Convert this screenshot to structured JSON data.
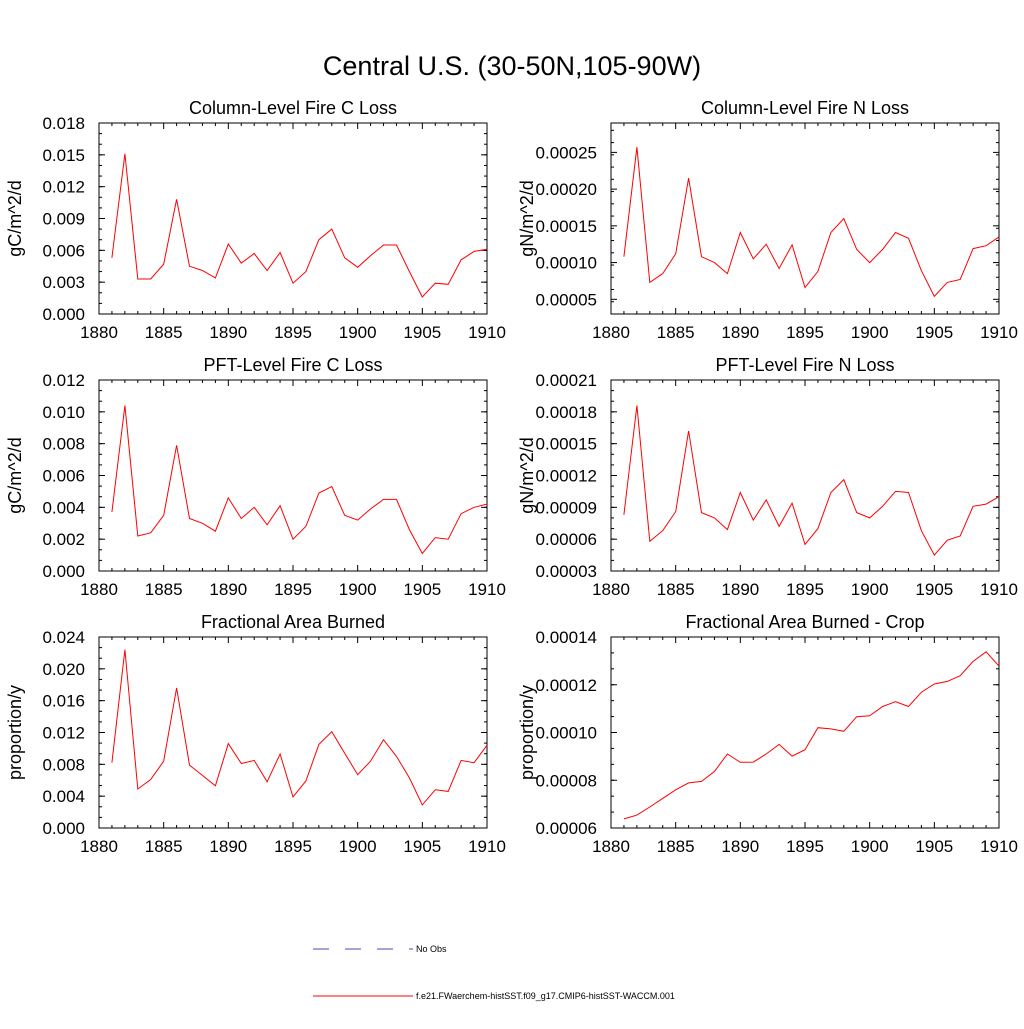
{
  "figure": {
    "title": "Central U.S. (30-50N,105-90W)",
    "line_color": "#ff0000",
    "obs_color": "#4a4aa8"
  },
  "legend": {
    "obs_label": "No Obs",
    "model_label": "f.e21.FWaerchem-histSST.f09_g17.CMIP6-histSST-WACCM.001"
  },
  "chart_data": [
    {
      "type": "line",
      "title": "Column-Level Fire C Loss",
      "ylabel": "gC/m^2/d",
      "xlim": [
        1880,
        1910
      ],
      "ylim": [
        0.0,
        0.018
      ],
      "xticks": [
        1880,
        1885,
        1890,
        1895,
        1900,
        1905,
        1910
      ],
      "yticks": [
        "0.000",
        "0.003",
        "0.006",
        "0.009",
        "0.012",
        "0.015",
        "0.018"
      ],
      "x": [
        1881,
        1882,
        1883,
        1884,
        1885,
        1886,
        1887,
        1888,
        1889,
        1890,
        1891,
        1892,
        1893,
        1894,
        1895,
        1896,
        1897,
        1898,
        1899,
        1900,
        1901,
        1902,
        1903,
        1904,
        1905,
        1906,
        1907,
        1908,
        1909,
        1910
      ],
      "series": [
        {
          "values": [
            0.0053,
            0.0151,
            0.0033,
            0.0033,
            0.0047,
            0.0108,
            0.0045,
            0.0041,
            0.0034,
            0.0066,
            0.0048,
            0.0057,
            0.0041,
            0.0058,
            0.0029,
            0.004,
            0.007,
            0.008,
            0.0053,
            0.0044,
            0.0055,
            0.0065,
            0.0065,
            0.004,
            0.0016,
            0.0029,
            0.0028,
            0.0051,
            0.0059,
            0.0061
          ]
        }
      ]
    },
    {
      "type": "line",
      "title": "Column-Level Fire N Loss",
      "ylabel": "gN/m^2/d",
      "xlim": [
        1880,
        1910
      ],
      "ylim": [
        3e-05,
        0.00029
      ],
      "xticks": [
        1880,
        1885,
        1890,
        1895,
        1900,
        1905,
        1910
      ],
      "yticks": [
        "0.00005",
        "0.00010",
        "0.00015",
        "0.00020",
        "0.00025"
      ],
      "x": [
        1881,
        1882,
        1883,
        1884,
        1885,
        1886,
        1887,
        1888,
        1889,
        1890,
        1891,
        1892,
        1893,
        1894,
        1895,
        1896,
        1897,
        1898,
        1899,
        1900,
        1901,
        1902,
        1903,
        1904,
        1905,
        1906,
        1907,
        1908,
        1909,
        1910
      ],
      "series": [
        {
          "values": [
            0.000108,
            0.000257,
            7.3e-05,
            8.5e-05,
            0.000112,
            0.000215,
            0.000108,
            0.0001,
            8.5e-05,
            0.000141,
            0.000105,
            0.000125,
            9.2e-05,
            0.000124,
            6.6e-05,
            8.8e-05,
            0.000141,
            0.00016,
            0.000118,
            0.0001,
            0.000118,
            0.000141,
            0.000133,
            8.9e-05,
            5.4e-05,
            7.3e-05,
            7.7e-05,
            0.000119,
            0.000123,
            0.000135
          ]
        }
      ]
    },
    {
      "type": "line",
      "title": "PFT-Level Fire C Loss",
      "ylabel": "gC/m^2/d",
      "xlim": [
        1880,
        1910
      ],
      "ylim": [
        0.0,
        0.012
      ],
      "xticks": [
        1880,
        1885,
        1890,
        1895,
        1900,
        1905,
        1910
      ],
      "yticks": [
        "0.000",
        "0.002",
        "0.004",
        "0.006",
        "0.008",
        "0.010",
        "0.012"
      ],
      "x": [
        1881,
        1882,
        1883,
        1884,
        1885,
        1886,
        1887,
        1888,
        1889,
        1890,
        1891,
        1892,
        1893,
        1894,
        1895,
        1896,
        1897,
        1898,
        1899,
        1900,
        1901,
        1902,
        1903,
        1904,
        1905,
        1906,
        1907,
        1908,
        1909,
        1910
      ],
      "series": [
        {
          "values": [
            0.0037,
            0.0104,
            0.0022,
            0.0024,
            0.0035,
            0.0079,
            0.0033,
            0.003,
            0.0025,
            0.0046,
            0.0033,
            0.004,
            0.0029,
            0.0041,
            0.002,
            0.0028,
            0.0049,
            0.0053,
            0.0035,
            0.0032,
            0.0039,
            0.0045,
            0.0045,
            0.0026,
            0.0011,
            0.0021,
            0.002,
            0.0036,
            0.004,
            0.0042
          ]
        }
      ]
    },
    {
      "type": "line",
      "title": "PFT-Level Fire N Loss",
      "ylabel": "gN/m^2/d",
      "xlim": [
        1880,
        1910
      ],
      "ylim": [
        3e-05,
        0.00021
      ],
      "xticks": [
        1880,
        1885,
        1890,
        1895,
        1900,
        1905,
        1910
      ],
      "yticks": [
        "0.00003",
        "0.00006",
        "0.00009",
        "0.00012",
        "0.00015",
        "0.00018",
        "0.00021"
      ],
      "x": [
        1881,
        1882,
        1883,
        1884,
        1885,
        1886,
        1887,
        1888,
        1889,
        1890,
        1891,
        1892,
        1893,
        1894,
        1895,
        1896,
        1897,
        1898,
        1899,
        1900,
        1901,
        1902,
        1903,
        1904,
        1905,
        1906,
        1907,
        1908,
        1909,
        1910
      ],
      "series": [
        {
          "values": [
            8.3e-05,
            0.000186,
            5.8e-05,
            6.8e-05,
            8.6e-05,
            0.000162,
            8.5e-05,
            8e-05,
            6.9e-05,
            0.000104,
            7.8e-05,
            9.7e-05,
            7.2e-05,
            9.4e-05,
            5.5e-05,
            7e-05,
            0.000104,
            0.000116,
            8.5e-05,
            8e-05,
            9.1e-05,
            0.000105,
            0.000104,
            6.8e-05,
            4.5e-05,
            5.9e-05,
            6.3e-05,
            9.1e-05,
            9.3e-05,
            0.0001
          ]
        }
      ]
    },
    {
      "type": "line",
      "title": "Fractional Area Burned",
      "ylabel": "proportion/y",
      "xlim": [
        1880,
        1910
      ],
      "ylim": [
        0.0,
        0.024
      ],
      "xticks": [
        1880,
        1885,
        1890,
        1895,
        1900,
        1905,
        1910
      ],
      "yticks": [
        "0.000",
        "0.004",
        "0.008",
        "0.012",
        "0.016",
        "0.020",
        "0.024"
      ],
      "x": [
        1881,
        1882,
        1883,
        1884,
        1885,
        1886,
        1887,
        1888,
        1889,
        1890,
        1891,
        1892,
        1893,
        1894,
        1895,
        1896,
        1897,
        1898,
        1899,
        1900,
        1901,
        1902,
        1903,
        1904,
        1905,
        1906,
        1907,
        1908,
        1909,
        1910
      ],
      "series": [
        {
          "values": [
            0.0082,
            0.0224,
            0.0049,
            0.0061,
            0.0084,
            0.0176,
            0.0079,
            0.0066,
            0.0053,
            0.0106,
            0.0081,
            0.0085,
            0.0058,
            0.0093,
            0.0039,
            0.0059,
            0.0105,
            0.0121,
            0.0094,
            0.0067,
            0.0084,
            0.0111,
            0.009,
            0.0063,
            0.0029,
            0.0048,
            0.0046,
            0.0085,
            0.0082,
            0.0104
          ]
        }
      ]
    },
    {
      "type": "line",
      "title": "Fractional Area Burned - Crop",
      "ylabel": "proportion/y",
      "xlim": [
        1880,
        1910
      ],
      "ylim": [
        6e-05,
        0.00014
      ],
      "xticks": [
        1880,
        1885,
        1890,
        1895,
        1900,
        1905,
        1910
      ],
      "yticks": [
        "0.00006",
        "0.00008",
        "0.00010",
        "0.00012",
        "0.00014"
      ],
      "x": [
        1881,
        1882,
        1883,
        1884,
        1885,
        1886,
        1887,
        1888,
        1889,
        1890,
        1891,
        1892,
        1893,
        1894,
        1895,
        1896,
        1897,
        1898,
        1899,
        1900,
        1901,
        1902,
        1903,
        1904,
        1905,
        1906,
        1907,
        1908,
        1909,
        1910
      ],
      "series": [
        {
          "values": [
            6.38e-05,
            6.54e-05,
            6.88e-05,
            7.24e-05,
            7.6e-05,
            7.89e-05,
            7.95e-05,
            8.37e-05,
            9.1e-05,
            8.75e-05,
            8.76e-05,
            9.1e-05,
            9.5e-05,
            9.01e-05,
            9.28e-05,
            0.000102,
            0.0001015,
            0.0001005,
            0.0001066,
            0.000107,
            0.0001109,
            0.0001129,
            0.0001109,
            0.0001169,
            0.0001203,
            0.0001214,
            0.0001238,
            0.0001298,
            0.0001338,
            0.0001278
          ]
        }
      ]
    }
  ]
}
